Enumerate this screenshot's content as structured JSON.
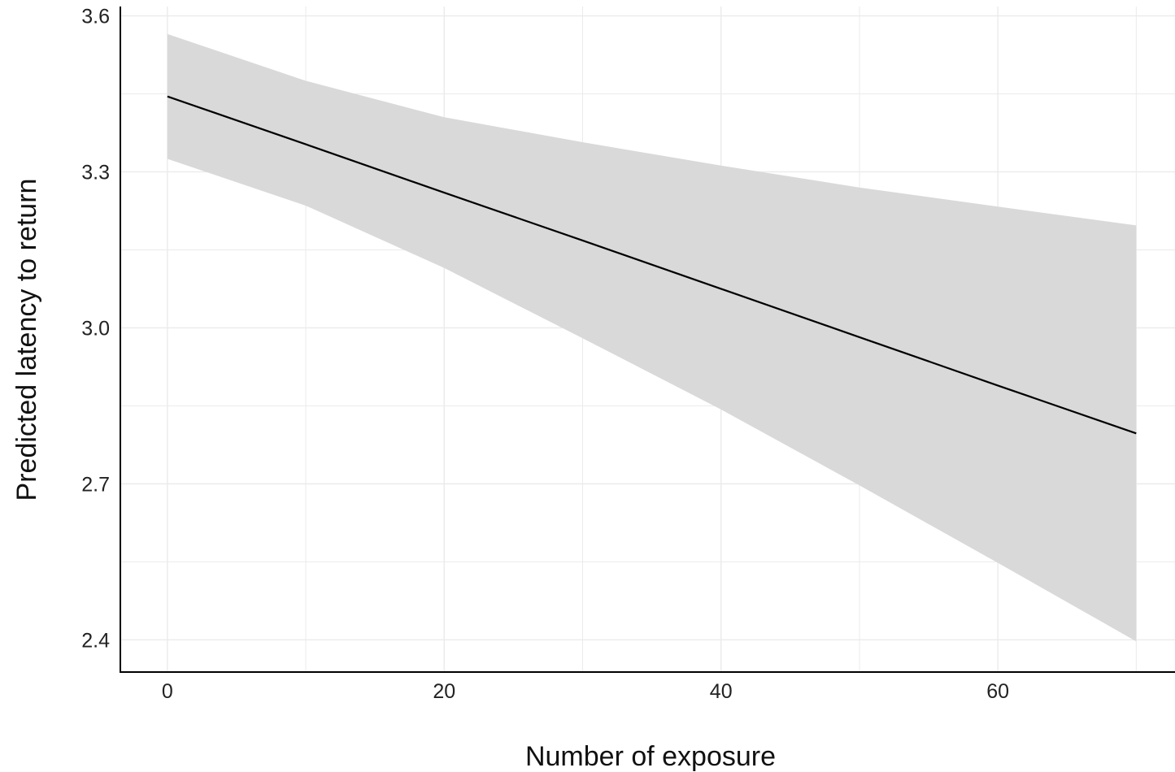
{
  "chart_data": {
    "type": "line",
    "xlabel": "Number of exposure",
    "ylabel": "Predicted latency to return",
    "xlim": [
      -3.4,
      72.8
    ],
    "ylim": [
      2.338,
      3.618
    ],
    "x_ticks": [
      0,
      20,
      40,
      60
    ],
    "x_tick_labels": [
      "0",
      "20",
      "40",
      "60"
    ],
    "x_minor_ticks": [
      10,
      30,
      50,
      70
    ],
    "y_ticks": [
      2.4,
      2.7,
      3.0,
      3.3,
      3.6
    ],
    "y_tick_labels": [
      "2.4",
      "2.7",
      "3.0",
      "3.3",
      "3.6"
    ],
    "y_minor_ticks": [
      2.55,
      2.85,
      3.15,
      3.45
    ],
    "grid": true,
    "legend": "none",
    "series": [
      {
        "x": [
          0,
          10,
          20,
          30,
          40,
          50,
          60,
          70
        ],
        "fit": [
          3.445,
          3.353,
          3.26,
          3.168,
          3.075,
          2.982,
          2.889,
          2.797
        ],
        "lower": [
          3.325,
          3.235,
          3.115,
          2.98,
          2.843,
          2.697,
          2.548,
          2.397
        ],
        "upper": [
          3.565,
          3.475,
          3.405,
          3.357,
          3.312,
          3.27,
          3.233,
          3.197
        ]
      }
    ],
    "colors": {
      "line": "#000000",
      "ribbon": "#d9d9d9",
      "grid": "#ebebeb",
      "axis": "#000000"
    }
  }
}
